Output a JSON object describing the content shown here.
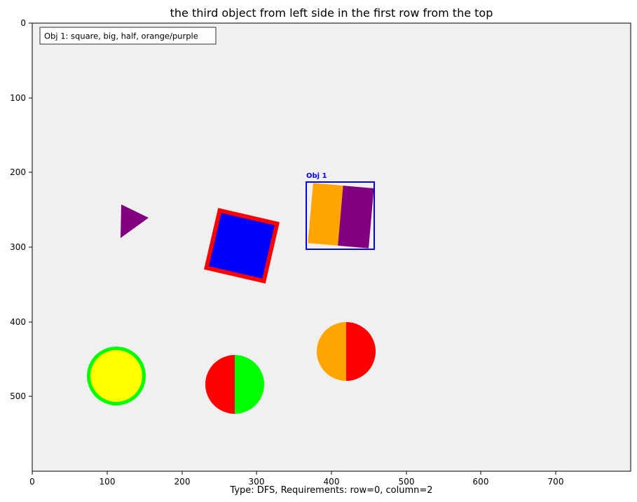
{
  "figure": {
    "title": "the third object from left side in the first row from the top",
    "caption": "Type: DFS, Requirements: row=0, column=2",
    "background_color": "#f0f0f0",
    "legend": {
      "text": "Obj 1: square, big, half, orange/purple"
    },
    "target_box": {
      "label": "Obj 1",
      "color": "#0000ee"
    }
  },
  "axes": {
    "x_ticks": [
      "0",
      "100",
      "200",
      "300",
      "400",
      "500",
      "600",
      "700"
    ],
    "y_ticks": [
      "0",
      "100",
      "200",
      "300",
      "400",
      "500"
    ]
  },
  "objects": [
    {
      "id": "purple-triangle",
      "shape": "triangle",
      "size": "small",
      "style": "solid",
      "colors": [
        "#800080"
      ]
    },
    {
      "id": "blue-square-red-border",
      "shape": "square",
      "size": "big",
      "style": "bordered",
      "colors": [
        "#0000ff",
        "#ff0000"
      ]
    },
    {
      "id": "orange-purple-square",
      "shape": "square",
      "size": "big",
      "style": "half",
      "colors": [
        "#ffa500",
        "#800080"
      ]
    },
    {
      "id": "orange-red-circle",
      "shape": "circle",
      "size": "big",
      "style": "half",
      "colors": [
        "#ffa500",
        "#ff0000"
      ]
    },
    {
      "id": "yellow-circle-green-border",
      "shape": "circle",
      "size": "big",
      "style": "bordered",
      "colors": [
        "#ffff00",
        "#00ff00"
      ]
    },
    {
      "id": "red-green-circle",
      "shape": "circle",
      "size": "big",
      "style": "half",
      "colors": [
        "#ff0000",
        "#00ff00"
      ]
    }
  ]
}
